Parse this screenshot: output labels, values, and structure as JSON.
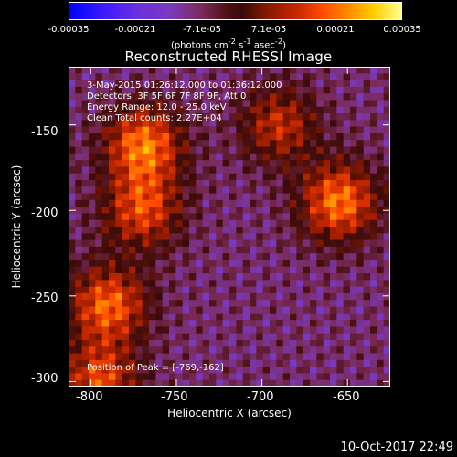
{
  "colorbar": {
    "ticks": [
      "-0.00035",
      "-0.00021",
      "-7.1e-05",
      "7.1e-05",
      "0.00021",
      "0.00035"
    ],
    "unit_prefix": "(photons cm",
    "unit_exp1": "-2",
    "unit_mid1": " s",
    "unit_exp2": "-1",
    "unit_mid2": " asec",
    "unit_exp3": "-2",
    "unit_suffix": ")"
  },
  "chart_data": {
    "type": "heatmap",
    "title": "Reconstructed RHESSI Image",
    "xlabel": "Heliocentric X (arcsec)",
    "ylabel": "Heliocentric Y (arcsec)",
    "x_ticks": [
      "-800",
      "-750",
      "-700",
      "-650"
    ],
    "y_ticks": [
      "-150",
      "-200",
      "-250",
      "-300"
    ],
    "xlim": [
      -813,
      -625
    ],
    "ylim": [
      -303,
      -116
    ],
    "annotations": [
      "3-May-2015 01:26:12.000 to 01:36:12.000",
      "Detectors: 3F 5F 6F 7F 8F 9F, Att 0",
      "Energy Range: 12.0 - 25.0 keV",
      "Clean     Total counts: 2.27E+04"
    ],
    "peak_label": "Position of Peak = [-769,-162]",
    "peak": [
      -769,
      -162
    ],
    "colorbar_range": [
      -0.00035,
      0.00035
    ],
    "bright_regions": [
      {
        "x": -769,
        "y": -162,
        "level": 0.0003
      },
      {
        "x": -770,
        "y": -200,
        "level": 0.00024
      },
      {
        "x": -790,
        "y": -255,
        "level": 0.00028
      },
      {
        "x": -655,
        "y": -195,
        "level": 0.0003
      },
      {
        "x": -690,
        "y": -150,
        "level": 0.0002
      },
      {
        "x": -795,
        "y": -300,
        "level": 0.00025
      }
    ]
  },
  "footer": {
    "timestamp": "10-Oct-2017 22:49"
  }
}
